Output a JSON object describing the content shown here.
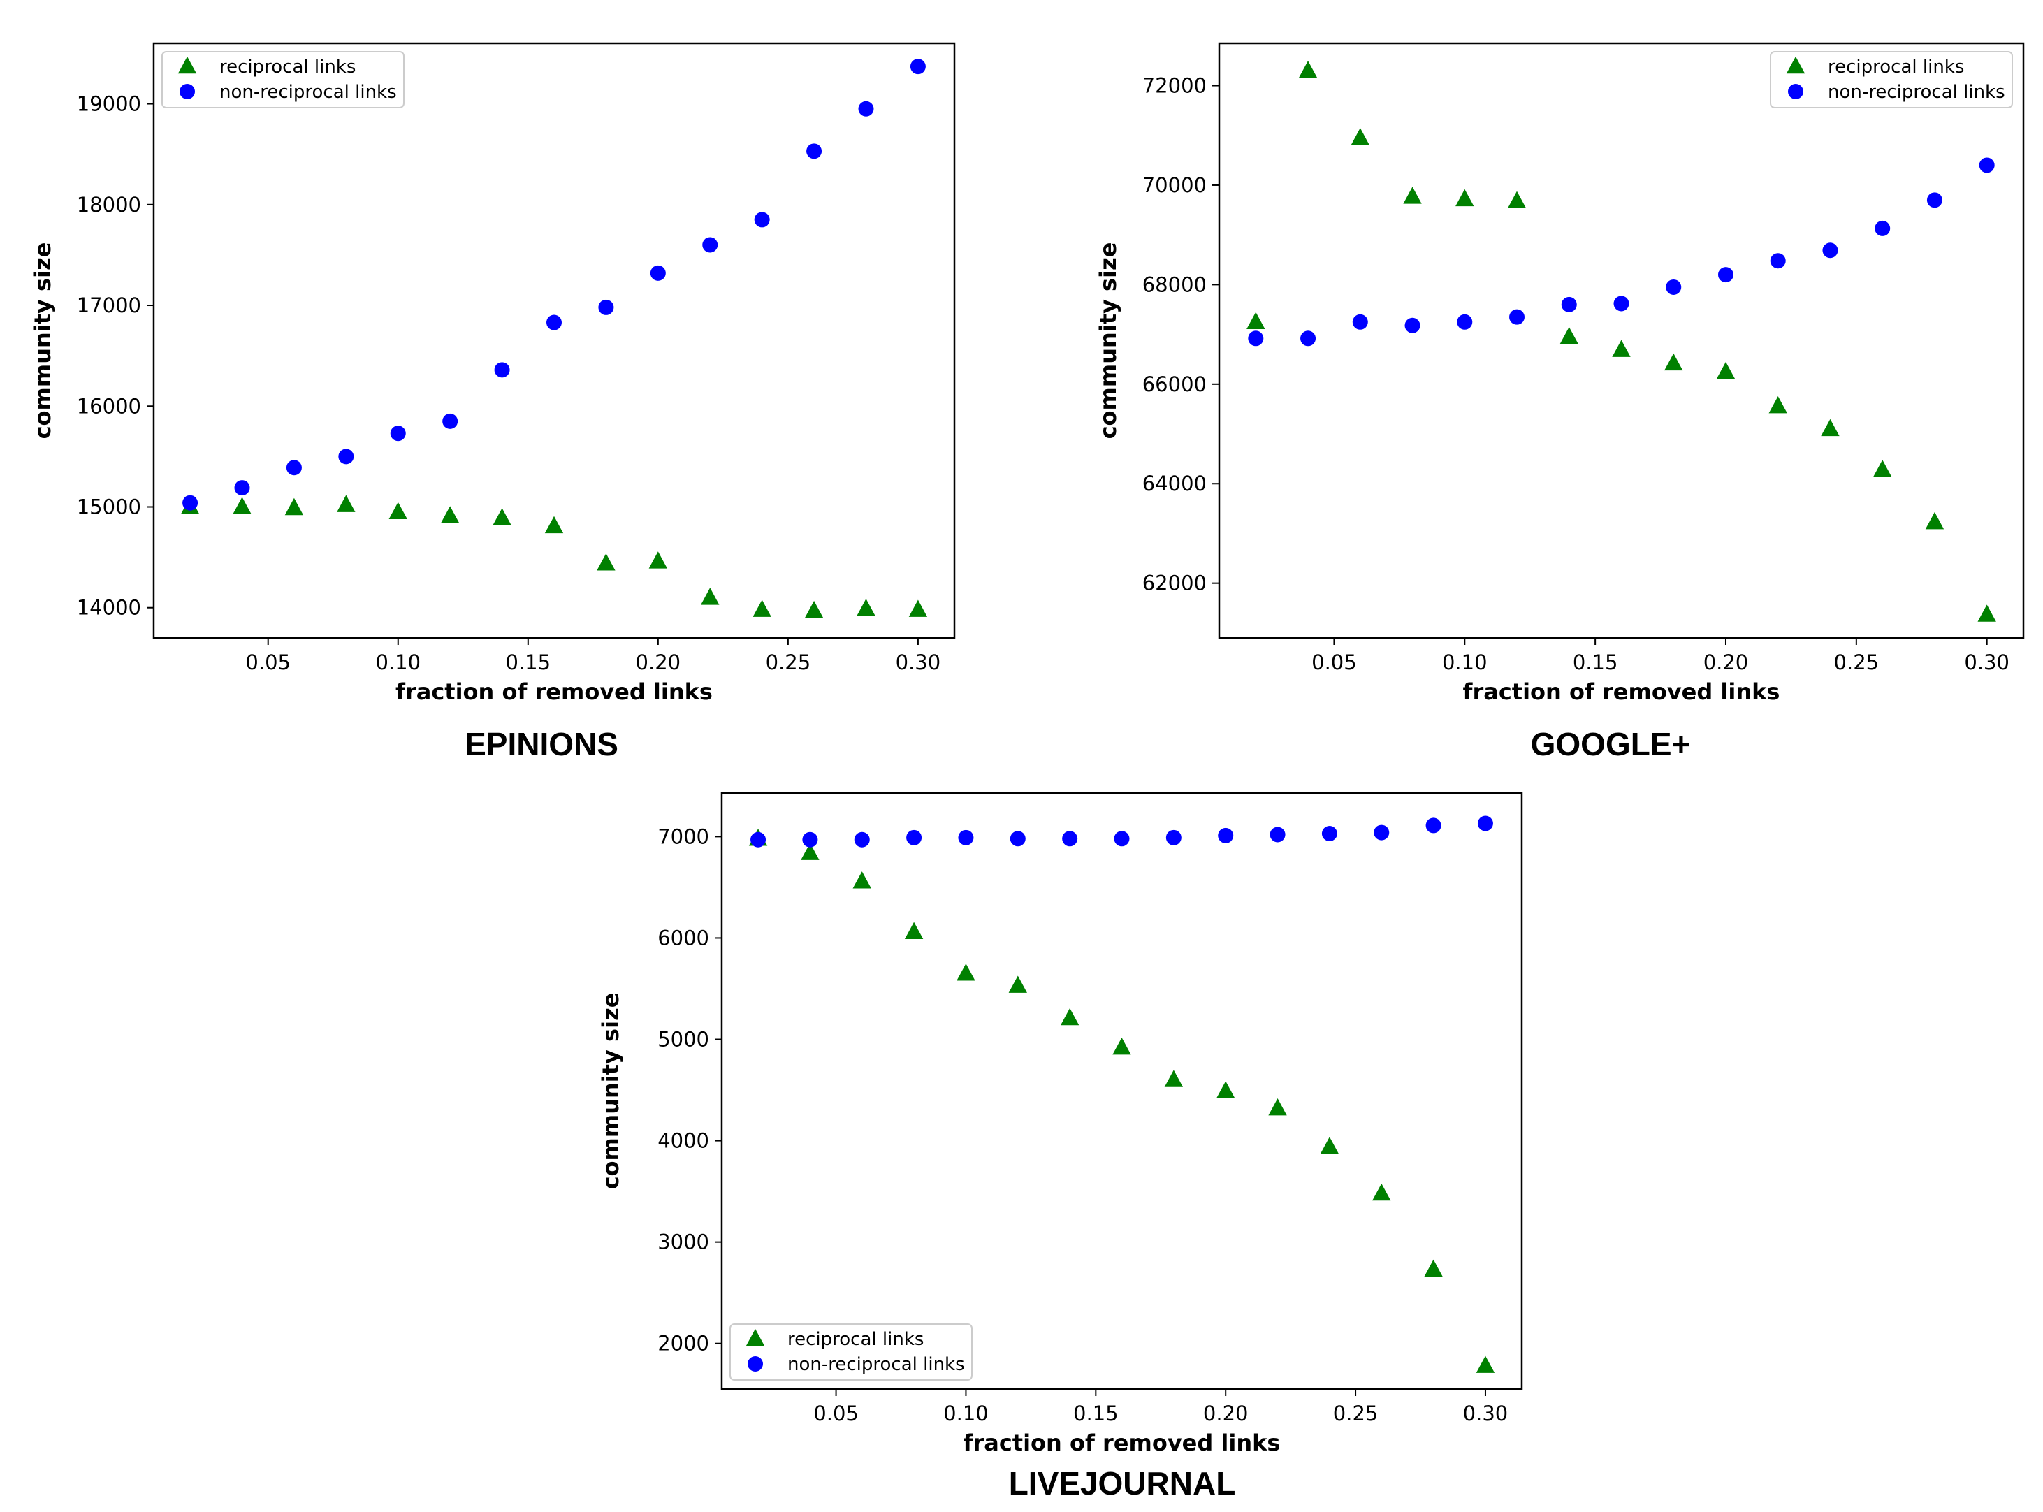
{
  "chart_data": [
    {
      "type": "scatter",
      "title": "EPINIONS",
      "xlabel": "fraction of removed links",
      "ylabel": "community size",
      "xlim": [
        0.006,
        0.314
      ],
      "ylim": [
        13700,
        19600
      ],
      "xticks": [
        0.05,
        0.1,
        0.15,
        0.2,
        0.25,
        0.3
      ],
      "xtick_labels": [
        "0.05",
        "0.10",
        "0.15",
        "0.20",
        "0.25",
        "0.30"
      ],
      "yticks": [
        14000,
        15000,
        16000,
        17000,
        18000,
        19000
      ],
      "ytick_labels": [
        "14000",
        "15000",
        "16000",
        "17000",
        "18000",
        "19000"
      ],
      "legend_position": "top-left",
      "x": [
        0.02,
        0.04,
        0.06,
        0.08,
        0.1,
        0.12,
        0.14,
        0.16,
        0.18,
        0.2,
        0.22,
        0.24,
        0.26,
        0.28,
        0.3
      ],
      "series": [
        {
          "name": "reciprocal links",
          "marker": "triangle",
          "color": "#008000",
          "values": [
            15000,
            15000,
            14990,
            15020,
            14950,
            14910,
            14890,
            14810,
            14440,
            14460,
            14100,
            13980,
            13970,
            13990,
            13980
          ]
        },
        {
          "name": "non-reciprocal links",
          "marker": "circle",
          "color": "#0000ff",
          "values": [
            15040,
            15190,
            15390,
            15500,
            15730,
            15850,
            16360,
            16830,
            16980,
            17320,
            17600,
            17850,
            18530,
            18950,
            19370
          ]
        }
      ]
    },
    {
      "type": "scatter",
      "title": "GOOGLE+",
      "xlabel": "fraction of removed links",
      "ylabel": "community size",
      "xlim": [
        0.006,
        0.314
      ],
      "ylim": [
        60900,
        72850
      ],
      "xticks": [
        0.05,
        0.1,
        0.15,
        0.2,
        0.25,
        0.3
      ],
      "xtick_labels": [
        "0.05",
        "0.10",
        "0.15",
        "0.20",
        "0.25",
        "0.30"
      ],
      "yticks": [
        62000,
        64000,
        66000,
        68000,
        70000,
        72000
      ],
      "ytick_labels": [
        "62000",
        "64000",
        "66000",
        "68000",
        "70000",
        "72000"
      ],
      "legend_position": "top-right",
      "x": [
        0.02,
        0.04,
        0.06,
        0.08,
        0.1,
        0.12,
        0.14,
        0.16,
        0.18,
        0.2,
        0.22,
        0.24,
        0.26,
        0.28,
        0.3
      ],
      "series": [
        {
          "name": "reciprocal links",
          "marker": "triangle",
          "color": "#008000",
          "x": [
            0.02,
            0.04,
            0.06,
            0.08,
            0.1,
            0.12,
            0.14,
            0.16,
            0.18,
            0.2,
            0.22,
            0.24,
            0.26,
            0.28,
            0.3
          ],
          "values": [
            67250,
            72300,
            70950,
            69770,
            69720,
            69680,
            66950,
            66690,
            66420,
            66250,
            65560,
            65100,
            64280,
            63230,
            61370
          ]
        },
        {
          "name": "non-reciprocal links",
          "marker": "circle",
          "color": "#0000ff",
          "values": [
            66920,
            66920,
            67250,
            67180,
            67250,
            67350,
            67600,
            67620,
            67950,
            68200,
            68480,
            68690,
            69130,
            69700,
            70400
          ]
        }
      ]
    },
    {
      "type": "scatter",
      "title": "LIVEJOURNAL",
      "xlabel": "fraction of removed links",
      "ylabel": "community size",
      "xlim": [
        0.006,
        0.314
      ],
      "ylim": [
        1550,
        7430
      ],
      "xticks": [
        0.05,
        0.1,
        0.15,
        0.2,
        0.25,
        0.3
      ],
      "xtick_labels": [
        "0.05",
        "0.10",
        "0.15",
        "0.20",
        "0.25",
        "0.30"
      ],
      "yticks": [
        2000,
        3000,
        4000,
        5000,
        6000,
        7000
      ],
      "ytick_labels": [
        "2000",
        "3000",
        "4000",
        "5000",
        "6000",
        "7000"
      ],
      "legend_position": "bottom-left",
      "x": [
        0.02,
        0.04,
        0.06,
        0.08,
        0.1,
        0.12,
        0.14,
        0.16,
        0.18,
        0.2,
        0.22,
        0.24,
        0.26,
        0.28,
        0.3
      ],
      "series": [
        {
          "name": "reciprocal links",
          "marker": "triangle",
          "color": "#008000",
          "values": [
            6980,
            6840,
            6560,
            6060,
            5650,
            5530,
            5210,
            4920,
            4600,
            4490,
            4320,
            3940,
            3480,
            2730,
            1780
          ]
        },
        {
          "name": "non-reciprocal links",
          "marker": "circle",
          "color": "#0000ff",
          "values": [
            6970,
            6970,
            6970,
            6990,
            6990,
            6980,
            6980,
            6980,
            6990,
            7010,
            7020,
            7030,
            7040,
            7110,
            7130
          ]
        }
      ]
    }
  ]
}
